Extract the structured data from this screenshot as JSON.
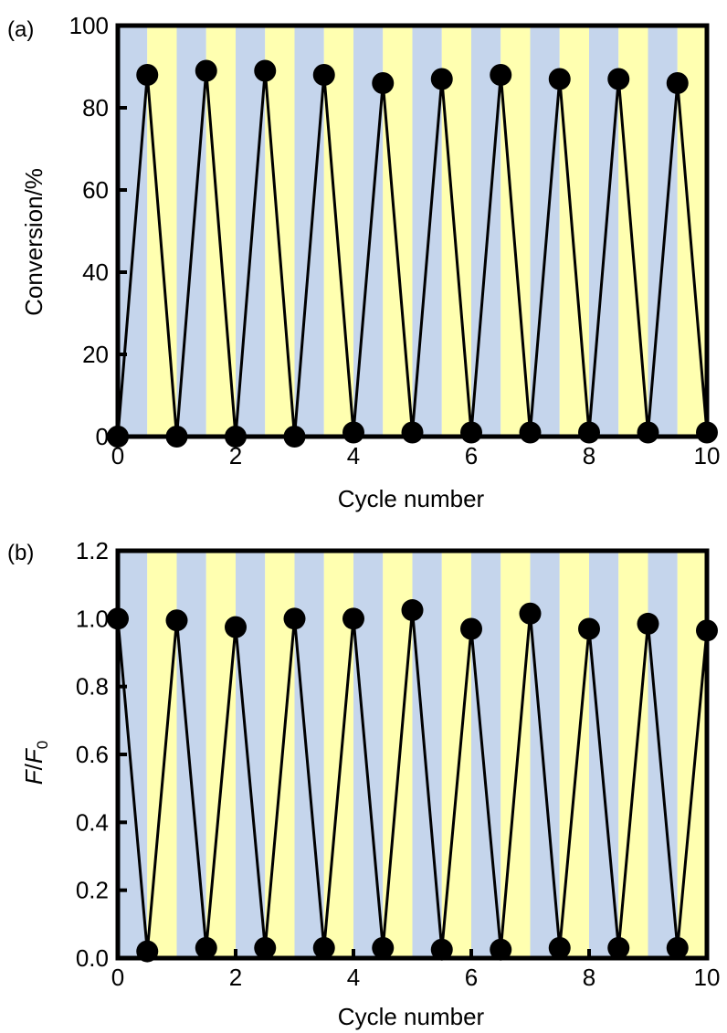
{
  "chart_data": [
    {
      "panel_label": "(a)",
      "type": "line",
      "xlabel": "Cycle number",
      "ylabel": "Conversion/%",
      "xlim": [
        0,
        10
      ],
      "ylim": [
        0,
        100
      ],
      "x_ticks": [
        0,
        2,
        4,
        6,
        8,
        10
      ],
      "y_ticks": [
        0,
        20,
        40,
        60,
        80,
        100
      ],
      "x_tick_labels": [
        "0",
        "2",
        "4",
        "6",
        "8",
        "10"
      ],
      "y_tick_labels": [
        "0",
        "20",
        "40",
        "60",
        "80",
        "100"
      ],
      "grid": false,
      "background_bands": {
        "width": 0.5,
        "colors": [
          "#c5d5ec",
          "#ffffb0"
        ]
      },
      "x": [
        0,
        0.5,
        1,
        1.5,
        2,
        2.5,
        3,
        3.5,
        4,
        4.5,
        5,
        5.5,
        6,
        6.5,
        7,
        7.5,
        8,
        8.5,
        9,
        9.5,
        10
      ],
      "y": [
        0,
        88,
        0,
        89,
        0,
        89,
        0,
        88,
        1,
        86,
        1,
        87,
        1,
        88,
        1,
        87,
        1,
        87,
        1,
        86,
        1
      ]
    },
    {
      "panel_label": "(b)",
      "type": "line",
      "xlabel": "Cycle number",
      "ylabel": {
        "F": "F",
        "slash": "/",
        "F0": "F",
        "sub": "0"
      },
      "xlim": [
        0,
        10
      ],
      "ylim": [
        0,
        1.2
      ],
      "x_ticks": [
        0,
        2,
        4,
        6,
        8,
        10
      ],
      "y_ticks": [
        0,
        0.2,
        0.4,
        0.6,
        0.8,
        1.0,
        1.2
      ],
      "x_tick_labels": [
        "0",
        "2",
        "4",
        "6",
        "8",
        "10"
      ],
      "y_tick_labels": [
        "0.0",
        "0.2",
        "0.4",
        "0.6",
        "0.8",
        "1.0",
        "1.2"
      ],
      "grid": false,
      "background_bands": {
        "width": 0.5,
        "colors": [
          "#c5d5ec",
          "#ffffb0"
        ]
      },
      "x": [
        0,
        0.5,
        1,
        1.5,
        2,
        2.5,
        3,
        3.5,
        4,
        4.5,
        5,
        5.5,
        6,
        6.5,
        7,
        7.5,
        8,
        8.5,
        9,
        9.5,
        10
      ],
      "y": [
        1.0,
        0.02,
        0.995,
        0.03,
        0.975,
        0.03,
        1.0,
        0.03,
        1.0,
        0.03,
        1.025,
        0.025,
        0.97,
        0.025,
        1.015,
        0.03,
        0.97,
        0.03,
        0.985,
        0.03,
        0.965
      ]
    }
  ]
}
